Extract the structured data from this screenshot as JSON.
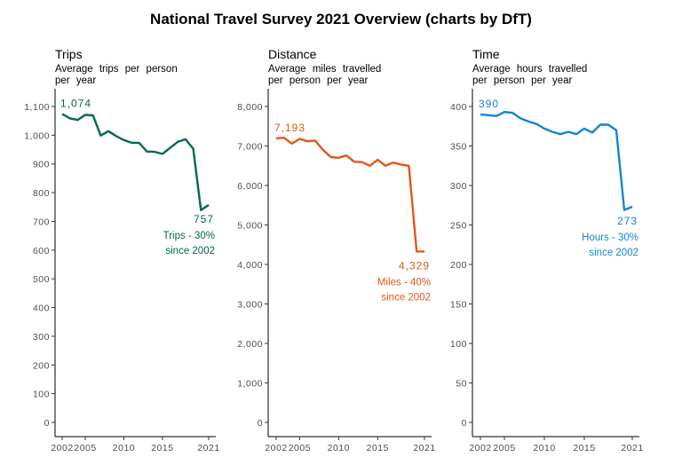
{
  "title": "National Travel Survey 2021 Overview (charts by DfT)",
  "chart_data": [
    {
      "type": "line",
      "title": "Trips",
      "subtitle": "Average trips per person per year",
      "color": "#006853",
      "x": [
        2002,
        2003,
        2004,
        2005,
        2006,
        2007,
        2008,
        2009,
        2010,
        2011,
        2012,
        2013,
        2014,
        2015,
        2016,
        2017,
        2018,
        2019,
        2020,
        2021
      ],
      "values": [
        1074,
        1059,
        1053,
        1071,
        1069,
        999,
        1014,
        997,
        983,
        974,
        973,
        943,
        942,
        935,
        956,
        977,
        986,
        953,
        739,
        757
      ],
      "ylim": [
        0,
        1100
      ],
      "yticks": [
        0,
        100,
        200,
        300,
        400,
        500,
        600,
        700,
        800,
        900,
        1000,
        1100
      ],
      "ytick_labels": [
        "0",
        "100",
        "200",
        "300",
        "400",
        "500",
        "600",
        "700",
        "800",
        "900",
        "1,000",
        "1,100"
      ],
      "xticks": [
        2002,
        2005,
        2010,
        2015,
        2021
      ],
      "xtick_labels": [
        "2002",
        "2005",
        "2010",
        "2015",
        "2021"
      ],
      "start_label": "1,074",
      "end_label": "757",
      "note": [
        "Trips  -  30%",
        "since   2002"
      ]
    },
    {
      "type": "line",
      "title": "Distance",
      "subtitle": "Average miles travelled per person per year",
      "color": "#e55614",
      "x": [
        2002,
        2003,
        2004,
        2005,
        2006,
        2007,
        2008,
        2009,
        2010,
        2011,
        2012,
        2013,
        2014,
        2015,
        2016,
        2017,
        2018,
        2019,
        2020,
        2021
      ],
      "values": [
        7193,
        7208,
        7060,
        7180,
        7120,
        7135,
        6900,
        6720,
        6700,
        6760,
        6600,
        6590,
        6500,
        6650,
        6500,
        6580,
        6530,
        6500,
        4330,
        4329
      ],
      "ylim": [
        0,
        8000
      ],
      "yticks": [
        0,
        1000,
        2000,
        3000,
        4000,
        5000,
        6000,
        7000,
        8000
      ],
      "ytick_labels": [
        "0",
        "1,000",
        "2,000",
        "3,000",
        "4,000",
        "5,000",
        "6,000",
        "7,000",
        "8,000"
      ],
      "xticks": [
        2002,
        2005,
        2010,
        2015,
        2021
      ],
      "xtick_labels": [
        "2002",
        "2005",
        "2010",
        "2015",
        "2021"
      ],
      "start_label": "7,193",
      "end_label": "4,329",
      "note": [
        "Miles  -  40%",
        "since   2002"
      ]
    },
    {
      "type": "line",
      "title": "Time",
      "subtitle": "Average hours travelled per person per year",
      "color": "#0f86d1",
      "x": [
        2002,
        2003,
        2004,
        2005,
        2006,
        2007,
        2008,
        2009,
        2010,
        2011,
        2012,
        2013,
        2014,
        2015,
        2016,
        2017,
        2018,
        2019,
        2020,
        2021
      ],
      "values": [
        390,
        389,
        388,
        393,
        392,
        385,
        381,
        378,
        372,
        368,
        365,
        368,
        365,
        372,
        367,
        377,
        377,
        370,
        269,
        273
      ],
      "ylim": [
        0,
        400
      ],
      "yticks": [
        0,
        50,
        100,
        150,
        200,
        250,
        300,
        350,
        400
      ],
      "ytick_labels": [
        "0",
        "50",
        "100",
        "150",
        "200",
        "250",
        "300",
        "350",
        "400"
      ],
      "xticks": [
        2002,
        2005,
        2010,
        2015,
        2021
      ],
      "xtick_labels": [
        "2002",
        "2005",
        "2010",
        "2015",
        "2021"
      ],
      "start_label": "390",
      "end_label": "273",
      "note": [
        "Hours  -  30%",
        "since   2002"
      ]
    }
  ]
}
